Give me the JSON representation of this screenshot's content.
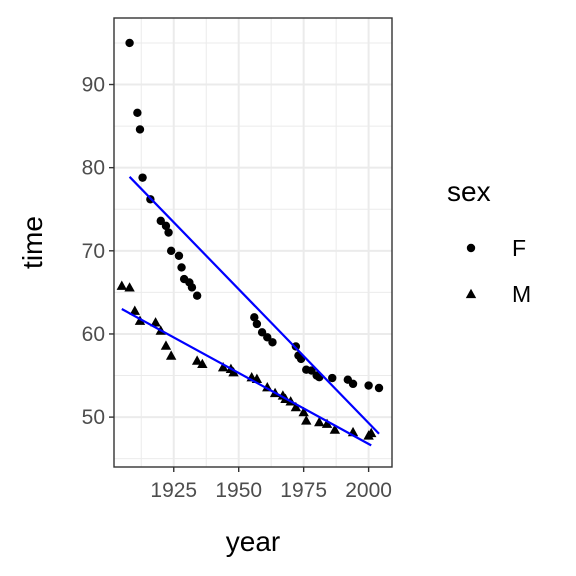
{
  "chart_data": {
    "type": "scatter",
    "xlabel": "year",
    "ylabel": "time",
    "xlim": [
      1902,
      2009
    ],
    "ylim": [
      44,
      98
    ],
    "x_ticks": [
      1925,
      1950,
      1975,
      2000
    ],
    "y_ticks": [
      50,
      60,
      70,
      80,
      90
    ],
    "x_tick_labels": [
      "1925",
      "1950",
      "1975",
      "2000"
    ],
    "y_tick_labels": [
      "50",
      "60",
      "70",
      "80",
      "90"
    ],
    "grid": true,
    "legend": {
      "title": "sex",
      "position": "right",
      "entries": [
        {
          "label": "F",
          "shape": "circle"
        },
        {
          "label": "M",
          "shape": "triangle"
        }
      ]
    },
    "series": [
      {
        "name": "F",
        "shape": "circle",
        "color": "#000000",
        "points": [
          [
            1908,
            95.0
          ],
          [
            1911,
            86.6
          ],
          [
            1912,
            84.6
          ],
          [
            1913,
            78.8
          ],
          [
            1916,
            76.2
          ],
          [
            1920,
            73.6
          ],
          [
            1922,
            73.0
          ],
          [
            1923,
            72.2
          ],
          [
            1924,
            70.0
          ],
          [
            1927,
            69.4
          ],
          [
            1928,
            68.0
          ],
          [
            1929,
            66.6
          ],
          [
            1931,
            66.2
          ],
          [
            1932,
            65.6
          ],
          [
            1934,
            64.6
          ],
          [
            1956,
            62.0
          ],
          [
            1957,
            61.2
          ],
          [
            1959,
            60.2
          ],
          [
            1961,
            59.6
          ],
          [
            1963,
            59.0
          ],
          [
            1972,
            58.5
          ],
          [
            1973,
            57.4
          ],
          [
            1974,
            57.0
          ],
          [
            1976,
            55.7
          ],
          [
            1978,
            55.6
          ],
          [
            1980,
            55.0
          ],
          [
            1981,
            54.8
          ],
          [
            1986,
            54.7
          ],
          [
            1992,
            54.5
          ],
          [
            1994,
            54.0
          ],
          [
            2000,
            53.8
          ],
          [
            2004,
            53.5
          ]
        ],
        "trend": {
          "x": [
            1908,
            2004
          ],
          "y": [
            78.9,
            48.0
          ]
        }
      },
      {
        "name": "M",
        "shape": "triangle",
        "color": "#000000",
        "points": [
          [
            1905,
            65.8
          ],
          [
            1908,
            65.6
          ],
          [
            1910,
            62.8
          ],
          [
            1912,
            61.6
          ],
          [
            1918,
            61.4
          ],
          [
            1920,
            60.4
          ],
          [
            1922,
            58.6
          ],
          [
            1924,
            57.4
          ],
          [
            1934,
            56.8
          ],
          [
            1936,
            56.4
          ],
          [
            1944,
            56.0
          ],
          [
            1947,
            55.8
          ],
          [
            1948,
            55.4
          ],
          [
            1955,
            54.8
          ],
          [
            1957,
            54.6
          ],
          [
            1961,
            53.6
          ],
          [
            1964,
            52.9
          ],
          [
            1967,
            52.6
          ],
          [
            1968,
            52.2
          ],
          [
            1970,
            51.9
          ],
          [
            1972,
            51.2
          ],
          [
            1975,
            50.6
          ],
          [
            1976,
            49.6
          ],
          [
            1981,
            49.4
          ],
          [
            1984,
            49.2
          ],
          [
            1987,
            48.5
          ],
          [
            1994,
            48.2
          ],
          [
            2000,
            47.8
          ],
          [
            2001,
            48.1
          ]
        ],
        "trend": {
          "x": [
            1905,
            2001
          ],
          "y": [
            63.0,
            46.6
          ]
        }
      }
    ],
    "trend_color": "#0000ff"
  }
}
